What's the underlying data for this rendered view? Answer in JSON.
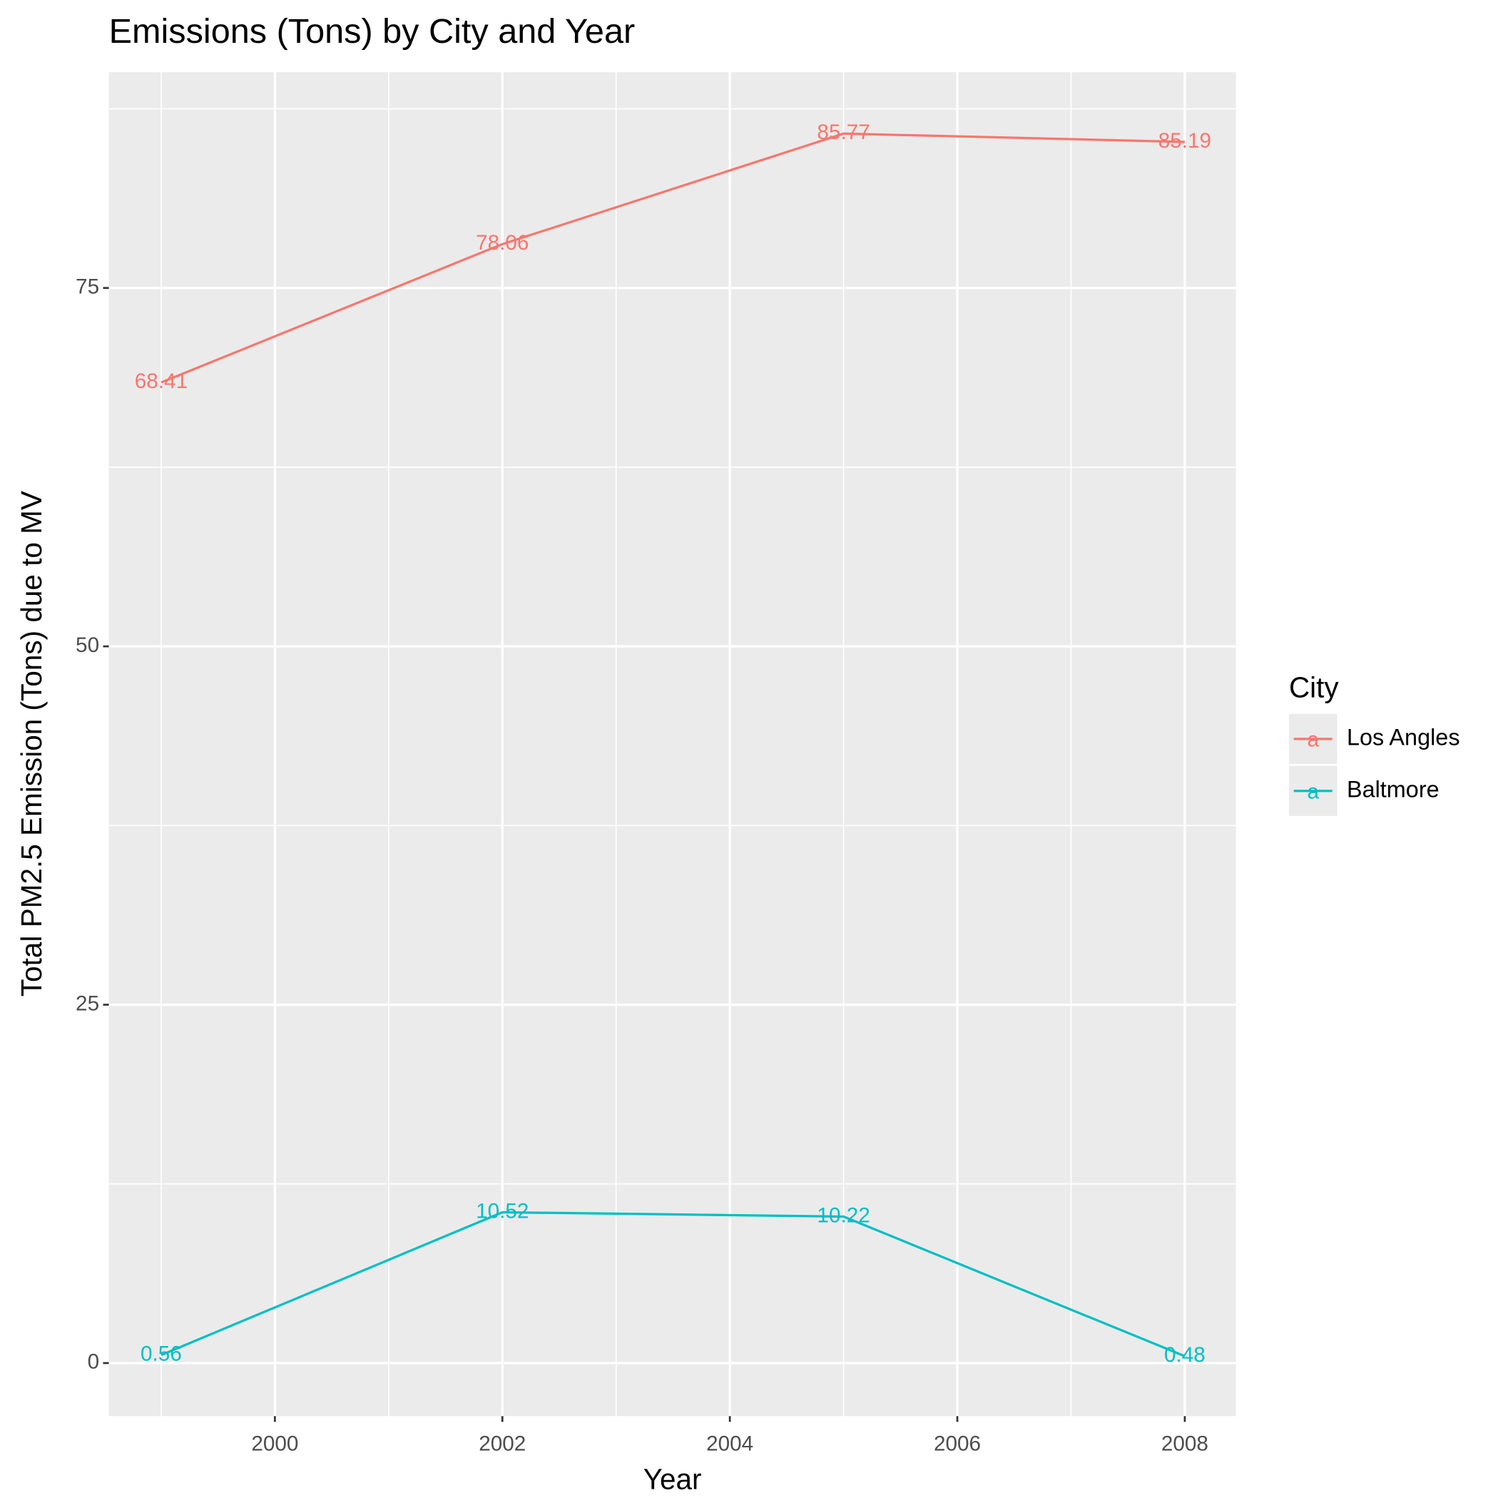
{
  "chart_data": {
    "type": "line",
    "title": "Emissions (Tons) by City and Year",
    "x_label": "Year",
    "y_label": "Total PM2.5 Emission (Tons) due to MV",
    "x": [
      1999,
      2002,
      2005,
      2008
    ],
    "series": [
      {
        "name": "Los Angles",
        "color": "#F8766D",
        "values": [
          68.41,
          78.06,
          85.77,
          85.19
        ]
      },
      {
        "name": "Baltmore",
        "color": "#00BFC4",
        "values": [
          0.56,
          10.52,
          10.22,
          0.48
        ]
      }
    ],
    "xlim": [
      1998.54,
      2008.45
    ],
    "xticks": [
      2000,
      2002,
      2004,
      2006,
      2008
    ],
    "x_minor_ticks": [
      1999,
      2001,
      2003,
      2005,
      2007
    ],
    "ylim": [
      -3.7,
      90.05
    ],
    "yticks": [
      0,
      25,
      50,
      75
    ],
    "y_minor_ticks": [
      12.5,
      37.5,
      62.5,
      87.5
    ],
    "grid": true,
    "legend_title": "City",
    "legend_key_label": "a",
    "legend_position": "right"
  }
}
